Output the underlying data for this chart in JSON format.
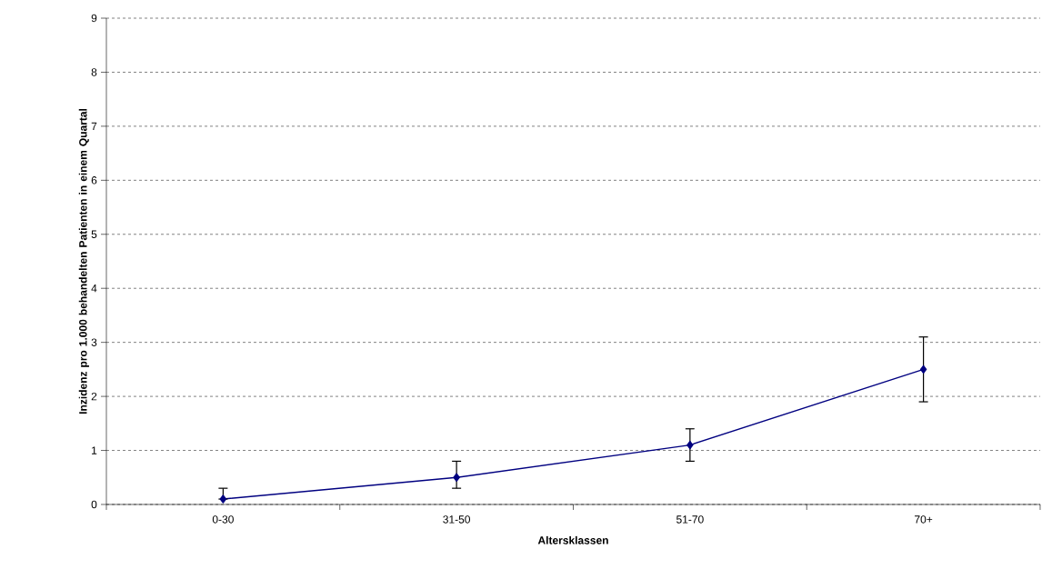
{
  "chart_data": {
    "type": "line",
    "xlabel": "Altersklassen",
    "ylabel": "Inzidenz pro 1.000 behandelten Patienten in einem Quartal",
    "categories": [
      "0-30",
      "31-50",
      "51-70",
      "70+"
    ],
    "series": [
      {
        "color": "#000080",
        "values": [
          0.1,
          0.5,
          1.1,
          2.5
        ],
        "errors": [
          [
            0.1,
            0.3
          ],
          [
            0.3,
            0.8
          ],
          [
            0.8,
            1.4
          ],
          [
            1.9,
            3.1
          ]
        ]
      }
    ],
    "ylim": [
      0,
      9
    ],
    "yticks": [
      0,
      1,
      2,
      3,
      4,
      5,
      6,
      7,
      8,
      9
    ],
    "grid": "y",
    "marker": "diamond",
    "line_style": "solid"
  }
}
